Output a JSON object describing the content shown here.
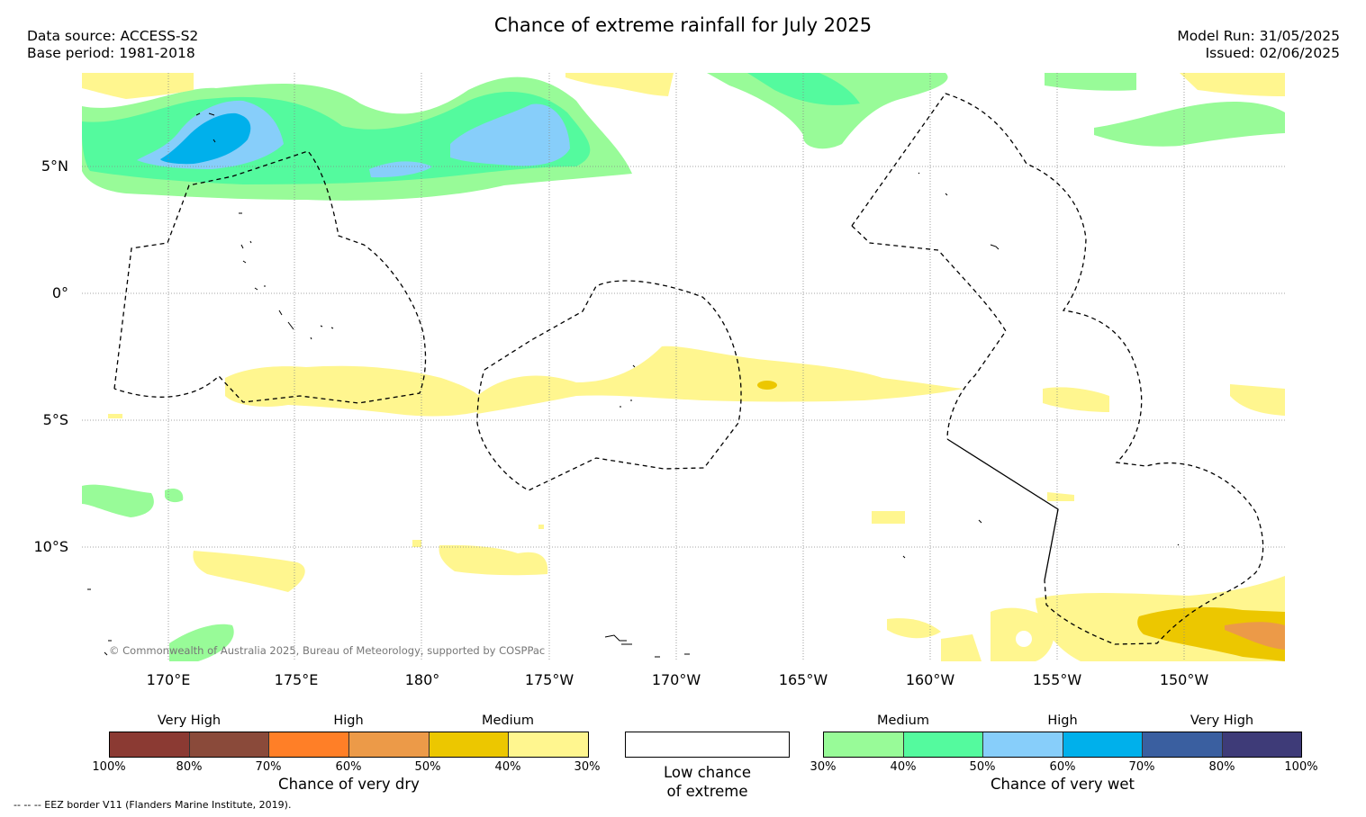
{
  "title": "Chance of extreme rainfall for July 2025",
  "data_source": "Data source: ACCESS-S2",
  "base_period": "Base period: 1981-2018",
  "model_run": "Model Run: 31/05/2025",
  "issued": "Issued: 02/06/2025",
  "lat_labels": [
    "5°N",
    "0°",
    "5°S",
    "10°S"
  ],
  "lon_labels": [
    "170°E",
    "175°E",
    "180°",
    "175°W",
    "170°W",
    "165°W",
    "160°W",
    "155°W",
    "150°W"
  ],
  "copyright": "© Commonwealth of Australia 2025, Bureau of Meteorology, supported by COSPPac",
  "dry_legend": {
    "categories": [
      "Very High",
      "High",
      "Medium"
    ],
    "colors": [
      "#8b3a33",
      "#8a4a3a",
      "#ff7f27",
      "#ec9a48",
      "#ecc700",
      "#fff68f"
    ],
    "ticks": [
      "100%",
      "80%",
      "70%",
      "60%",
      "50%",
      "40%",
      "30%"
    ],
    "label": "Chance of very dry"
  },
  "neutral_legend": {
    "line1": "Low chance",
    "line2": "of extreme",
    "color": "#ffffff"
  },
  "wet_legend": {
    "categories": [
      "Medium",
      "High",
      "Very High"
    ],
    "colors": [
      "#98fb98",
      "#54fa9e",
      "#87cefa",
      "#00b0eb",
      "#3a5fa0",
      "#3e3b78"
    ],
    "ticks": [
      "30%",
      "40%",
      "50%",
      "60%",
      "70%",
      "80%",
      "100%"
    ],
    "label": "Chance of very wet"
  },
  "eez_note": "-- -- -- EEZ border V11 (Flanders Marine Institute, 2019)."
}
